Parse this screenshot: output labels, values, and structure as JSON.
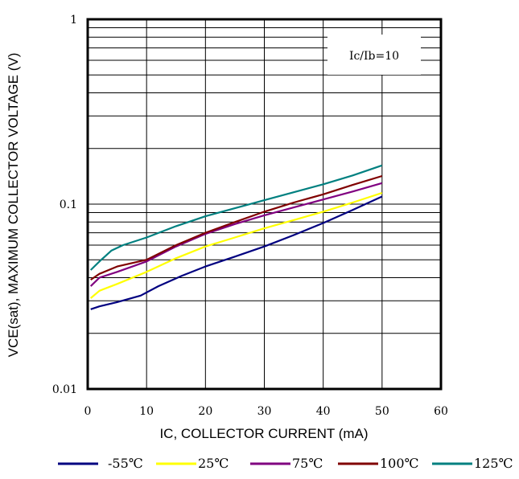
{
  "chart_data": {
    "type": "line",
    "title": "",
    "xlabel": "IC, COLLECTOR CURRENT (mA)",
    "ylabel": "VCE(sat), MAXIMUM COLLECTOR VOLTAGE (V)",
    "xlim": [
      0,
      60
    ],
    "ylim": [
      0.01,
      1
    ],
    "y_scale": "log",
    "grid": true,
    "x_ticks": [
      0,
      10,
      20,
      30,
      40,
      50,
      60
    ],
    "x_tick_labels": [
      "0",
      "10",
      "20",
      "30",
      "40",
      "50",
      "60"
    ],
    "y_ticks": [
      0.01,
      0.1,
      1
    ],
    "y_tick_labels": [
      "0.01",
      "0.1",
      "1"
    ],
    "annotation": "Ic/Ib=10",
    "legend_position": "bottom",
    "series": [
      {
        "name": "-55℃",
        "color": "#000080",
        "x": [
          0.5,
          2,
          5,
          9,
          12,
          16,
          20,
          25,
          30,
          35,
          40,
          45,
          50
        ],
        "y": [
          0.027,
          0.028,
          0.0295,
          0.032,
          0.036,
          0.041,
          0.046,
          0.052,
          0.059,
          0.068,
          0.079,
          0.093,
          0.11
        ]
      },
      {
        "name": "25℃",
        "color": "#ffff00",
        "x": [
          0.5,
          2,
          5,
          10,
          15,
          20,
          25,
          30,
          35,
          40,
          45,
          50
        ],
        "y": [
          0.031,
          0.034,
          0.037,
          0.043,
          0.051,
          0.059,
          0.066,
          0.074,
          0.082,
          0.091,
          0.102,
          0.115
        ]
      },
      {
        "name": "75℃",
        "color": "#800080",
        "x": [
          0.5,
          2,
          5,
          10,
          15,
          20,
          25,
          30,
          35,
          40,
          45,
          50
        ],
        "y": [
          0.036,
          0.04,
          0.043,
          0.049,
          0.059,
          0.069,
          0.078,
          0.087,
          0.096,
          0.106,
          0.117,
          0.13
        ]
      },
      {
        "name": "100℃",
        "color": "#800000",
        "x": [
          0.5,
          2,
          5,
          10,
          15,
          20,
          25,
          30,
          35,
          40,
          45,
          50
        ],
        "y": [
          0.039,
          0.042,
          0.046,
          0.05,
          0.06,
          0.07,
          0.08,
          0.091,
          0.102,
          0.113,
          0.127,
          0.142
        ]
      },
      {
        "name": "125℃",
        "color": "#008080",
        "x": [
          0.5,
          2,
          4,
          6,
          10,
          15,
          20,
          25,
          30,
          35,
          40,
          45,
          50
        ],
        "y": [
          0.044,
          0.049,
          0.056,
          0.06,
          0.066,
          0.076,
          0.086,
          0.095,
          0.105,
          0.116,
          0.128,
          0.143,
          0.162
        ]
      }
    ]
  }
}
